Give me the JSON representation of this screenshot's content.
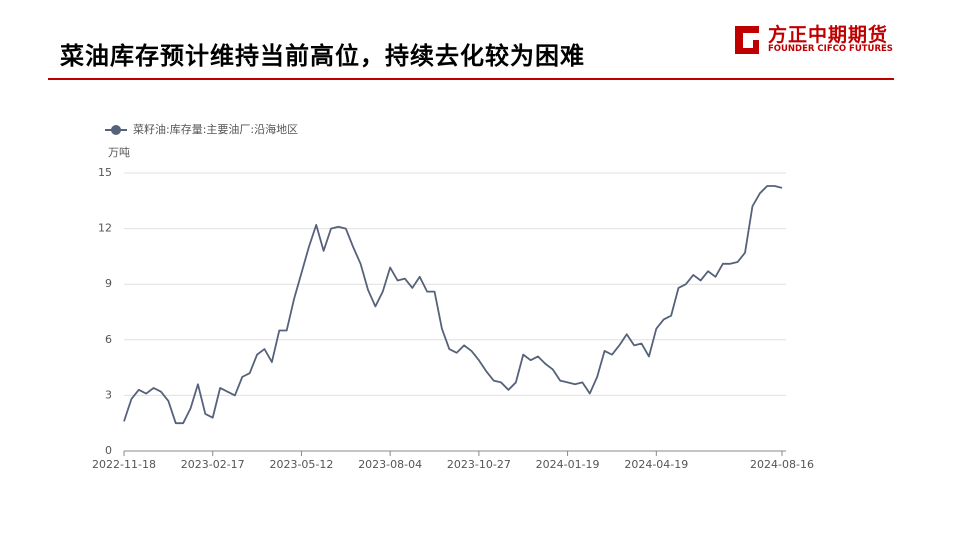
{
  "header": {
    "title": "菜油库存预计维持当前高位，持续去化较为困难",
    "logo_cn": "方正中期期货",
    "logo_en": "FOUNDER CIFCO FUTURES"
  },
  "chart_data": {
    "type": "line",
    "y_unit": "万吨",
    "categories": [
      "2022-11-18",
      null,
      null,
      null,
      null,
      null,
      null,
      null,
      null,
      null,
      null,
      null,
      "2023-02-17",
      null,
      null,
      null,
      null,
      null,
      null,
      null,
      null,
      null,
      null,
      null,
      "2023-05-12",
      null,
      null,
      null,
      null,
      null,
      null,
      null,
      null,
      null,
      null,
      null,
      "2023-08-04",
      null,
      null,
      null,
      null,
      null,
      null,
      null,
      null,
      null,
      null,
      null,
      "2023-10-27",
      null,
      null,
      null,
      null,
      null,
      null,
      null,
      null,
      null,
      null,
      null,
      "2024-01-19",
      null,
      null,
      null,
      null,
      null,
      null,
      null,
      null,
      null,
      null,
      null,
      "2024-04-19",
      null,
      null,
      null,
      null,
      null,
      null,
      null,
      null,
      null,
      null,
      null,
      null,
      null,
      null,
      null,
      null,
      "2024-08-16"
    ],
    "series": [
      {
        "name": "菜籽油:库存量:主要油厂:沿海地区",
        "color": "#56627a",
        "values": [
          1.6,
          2.8,
          3.3,
          3.1,
          3.4,
          3.2,
          2.7,
          1.5,
          1.5,
          2.3,
          3.6,
          2.0,
          1.8,
          3.4,
          3.2,
          3.0,
          4.0,
          4.2,
          5.2,
          5.5,
          4.8,
          6.5,
          6.5,
          8.2,
          9.6,
          11.0,
          12.2,
          10.8,
          12.0,
          12.1,
          12.0,
          11.0,
          10.1,
          8.7,
          7.8,
          8.6,
          9.9,
          9.2,
          9.3,
          8.8,
          9.4,
          8.6,
          8.6,
          6.6,
          5.5,
          5.3,
          5.7,
          5.4,
          4.9,
          4.3,
          3.8,
          3.7,
          3.3,
          3.7,
          5.2,
          4.9,
          5.1,
          4.7,
          4.4,
          3.8,
          3.7,
          3.6,
          3.7,
          3.1,
          4.0,
          5.4,
          5.2,
          5.7,
          6.3,
          5.7,
          5.8,
          5.1,
          6.6,
          7.1,
          7.3,
          8.8,
          9.0,
          9.5,
          9.2,
          9.7,
          9.4,
          10.1,
          10.1,
          10.2,
          10.7,
          13.2,
          13.9,
          14.3,
          14.3,
          14.2
        ]
      }
    ],
    "ylim": [
      0,
      15
    ],
    "yticks": [
      0,
      3,
      6,
      9,
      12,
      15
    ],
    "grid": true
  }
}
